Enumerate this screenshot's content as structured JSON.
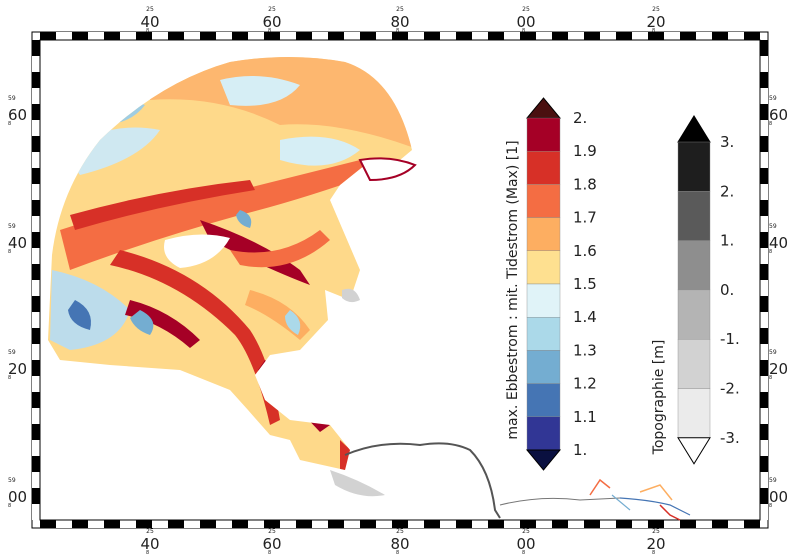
{
  "map": {
    "top_axis": [
      {
        "degree": "25",
        "minutes": "40",
        "suffix": "8"
      },
      {
        "degree": "25",
        "minutes": "60",
        "suffix": "8"
      },
      {
        "degree": "25",
        "minutes": "80",
        "suffix": "8"
      },
      {
        "degree": "25",
        "minutes": "00",
        "suffix": "8"
      },
      {
        "degree": "25",
        "minutes": "20",
        "suffix": "8"
      }
    ],
    "bottom_axis": [
      {
        "degree": "25",
        "minutes": "40",
        "suffix": "8"
      },
      {
        "degree": "25",
        "minutes": "60",
        "suffix": "8"
      },
      {
        "degree": "25",
        "minutes": "80",
        "suffix": "8"
      },
      {
        "degree": "25",
        "minutes": "00",
        "suffix": "8"
      },
      {
        "degree": "25",
        "minutes": "20",
        "suffix": "8"
      }
    ],
    "left_axis": [
      {
        "degree": "59",
        "minutes": "60",
        "suffix": "8"
      },
      {
        "degree": "59",
        "minutes": "40",
        "suffix": "8"
      },
      {
        "degree": "59",
        "minutes": "20",
        "suffix": "8"
      },
      {
        "degree": "59",
        "minutes": "00",
        "suffix": "8"
      }
    ],
    "right_axis": [
      {
        "degree": "59",
        "minutes": "60",
        "suffix": "8"
      },
      {
        "degree": "59",
        "minutes": "40",
        "suffix": "8"
      },
      {
        "degree": "59",
        "minutes": "20",
        "suffix": "8"
      },
      {
        "degree": "59",
        "minutes": "00",
        "suffix": "8"
      }
    ]
  },
  "legend_current": {
    "title": "max. Ebbestrom : mit. Tidestrom (Max) [1]",
    "labels": [
      "2.",
      "1.9",
      "1.8",
      "1.7",
      "1.6",
      "1.5",
      "1.4",
      "1.3",
      "1.2",
      "1.1",
      "1."
    ],
    "colors": [
      "#a50026",
      "#d73027",
      "#f46d43",
      "#fdae61",
      "#fee090",
      "#e0f3f8",
      "#abd9e9",
      "#74add1",
      "#4575b4",
      "#313695"
    ],
    "over_color": "#4a1010",
    "under_color": "#0a1040"
  },
  "legend_topo": {
    "title": "Topographie [m]",
    "labels": [
      "3.",
      "2.",
      "1.",
      "0.",
      "-1.",
      "-2.",
      "-3."
    ],
    "colors": [
      "#1e1e1e",
      "#5a5a5a",
      "#8e8e8e",
      "#b4b4b4",
      "#d2d2d2",
      "#ebebeb"
    ],
    "over_color": "#000000",
    "under_color": "#ffffff"
  }
}
